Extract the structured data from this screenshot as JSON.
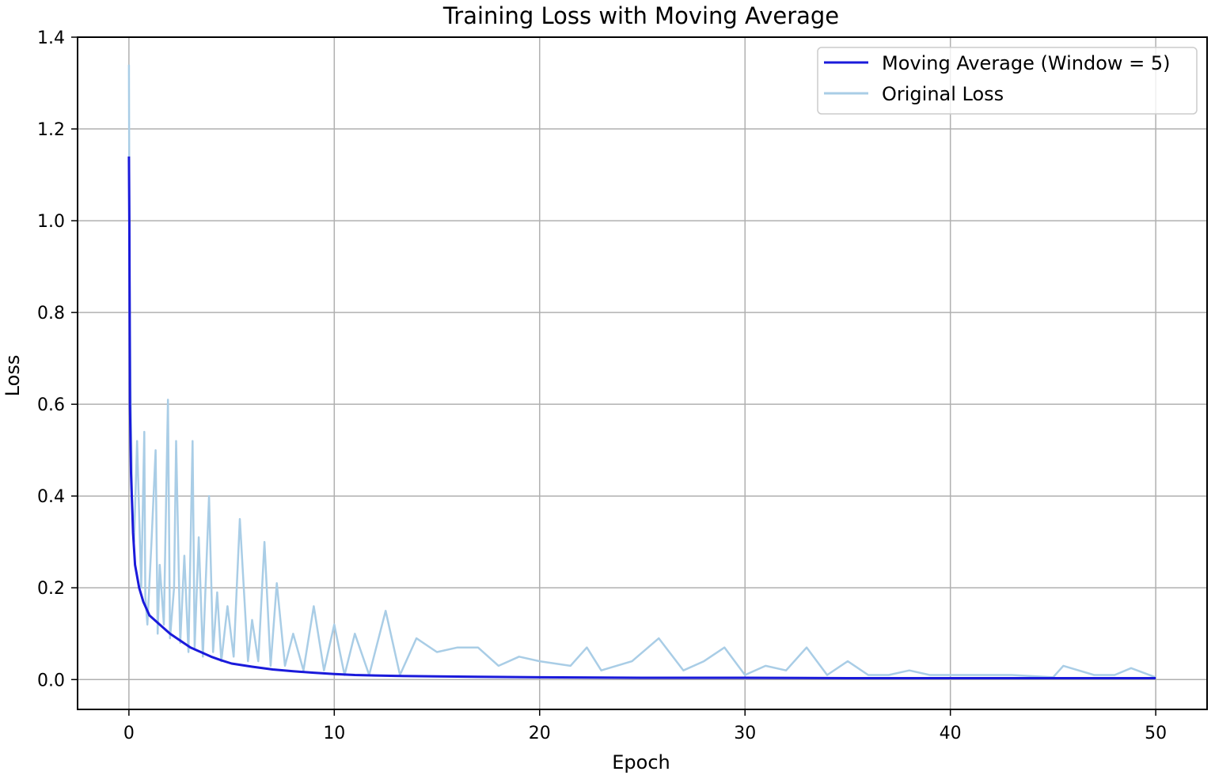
{
  "chart_data": {
    "type": "line",
    "title": "Training Loss with Moving Average",
    "xlabel": "Epoch",
    "ylabel": "Loss",
    "xlim": [
      -2.5,
      52.5
    ],
    "ylim": [
      -0.065,
      1.4
    ],
    "xticks": [
      0,
      10,
      20,
      30,
      40,
      50
    ],
    "xtick_labels": [
      "0",
      "10",
      "20",
      "30",
      "40",
      "50"
    ],
    "yticks": [
      0.0,
      0.2,
      0.4,
      0.6,
      0.8,
      1.0,
      1.2,
      1.4
    ],
    "ytick_labels": [
      "0.0",
      "0.2",
      "0.4",
      "0.6",
      "0.8",
      "1.0",
      "1.2",
      "1.4"
    ],
    "grid": true,
    "legend_position": "top-right",
    "series": [
      {
        "name": "Moving Average (Window = 5)",
        "color": "#1a1adb",
        "x": [
          0,
          0.02,
          0.05,
          0.1,
          0.2,
          0.3,
          0.5,
          0.7,
          1.0,
          1.5,
          2.0,
          2.5,
          3.0,
          3.5,
          4.0,
          4.5,
          5.0,
          6.0,
          7.0,
          8.0,
          9.0,
          10.0,
          11.0,
          12.0,
          13.0,
          15.0,
          17.0,
          20.0,
          25.0,
          30.0,
          35.0,
          40.0,
          45.0,
          50.0
        ],
        "y": [
          1.14,
          1.0,
          0.6,
          0.45,
          0.32,
          0.25,
          0.2,
          0.17,
          0.14,
          0.12,
          0.1,
          0.085,
          0.07,
          0.06,
          0.05,
          0.042,
          0.035,
          0.028,
          0.022,
          0.018,
          0.015,
          0.012,
          0.01,
          0.009,
          0.008,
          0.007,
          0.006,
          0.005,
          0.004,
          0.004,
          0.003,
          0.003,
          0.003,
          0.003
        ]
      },
      {
        "name": "Original Loss",
        "color": "#a9cde6",
        "x": [
          0,
          0.03,
          0.08,
          0.15,
          0.25,
          0.4,
          0.6,
          0.75,
          0.8,
          0.9,
          1.1,
          1.3,
          1.4,
          1.5,
          1.7,
          1.9,
          2.0,
          2.2,
          2.3,
          2.5,
          2.7,
          2.9,
          3.1,
          3.2,
          3.4,
          3.6,
          3.9,
          4.1,
          4.3,
          4.5,
          4.8,
          5.1,
          5.4,
          5.8,
          6.0,
          6.3,
          6.6,
          6.9,
          7.2,
          7.6,
          8.0,
          8.5,
          9.0,
          9.5,
          10.0,
          10.5,
          11.0,
          11.7,
          12.5,
          13.2,
          14.0,
          15.0,
          16.0,
          17.0,
          18.0,
          19.0,
          20.0,
          21.5,
          22.3,
          23.0,
          24.5,
          25.8,
          27.0,
          28.0,
          29.0,
          30.0,
          31.0,
          32.0,
          33.0,
          34.0,
          35.0,
          36.0,
          37.0,
          38.0,
          39.0,
          40.0,
          41.5,
          43.0,
          45.0,
          45.5,
          47.0,
          48.0,
          48.8,
          50.0
        ],
        "y": [
          1.34,
          0.9,
          0.64,
          0.4,
          0.3,
          0.52,
          0.2,
          0.54,
          0.18,
          0.12,
          0.3,
          0.5,
          0.1,
          0.25,
          0.12,
          0.61,
          0.09,
          0.2,
          0.52,
          0.08,
          0.27,
          0.06,
          0.52,
          0.07,
          0.31,
          0.05,
          0.4,
          0.06,
          0.19,
          0.04,
          0.16,
          0.05,
          0.35,
          0.04,
          0.13,
          0.04,
          0.3,
          0.03,
          0.21,
          0.03,
          0.1,
          0.02,
          0.16,
          0.02,
          0.12,
          0.01,
          0.1,
          0.01,
          0.15,
          0.01,
          0.09,
          0.06,
          0.07,
          0.07,
          0.03,
          0.05,
          0.04,
          0.03,
          0.07,
          0.02,
          0.04,
          0.09,
          0.02,
          0.04,
          0.07,
          0.01,
          0.03,
          0.02,
          0.07,
          0.01,
          0.04,
          0.01,
          0.01,
          0.02,
          0.01,
          0.01,
          0.01,
          0.01,
          0.005,
          0.03,
          0.01,
          0.01,
          0.025,
          0.005
        ]
      }
    ]
  }
}
